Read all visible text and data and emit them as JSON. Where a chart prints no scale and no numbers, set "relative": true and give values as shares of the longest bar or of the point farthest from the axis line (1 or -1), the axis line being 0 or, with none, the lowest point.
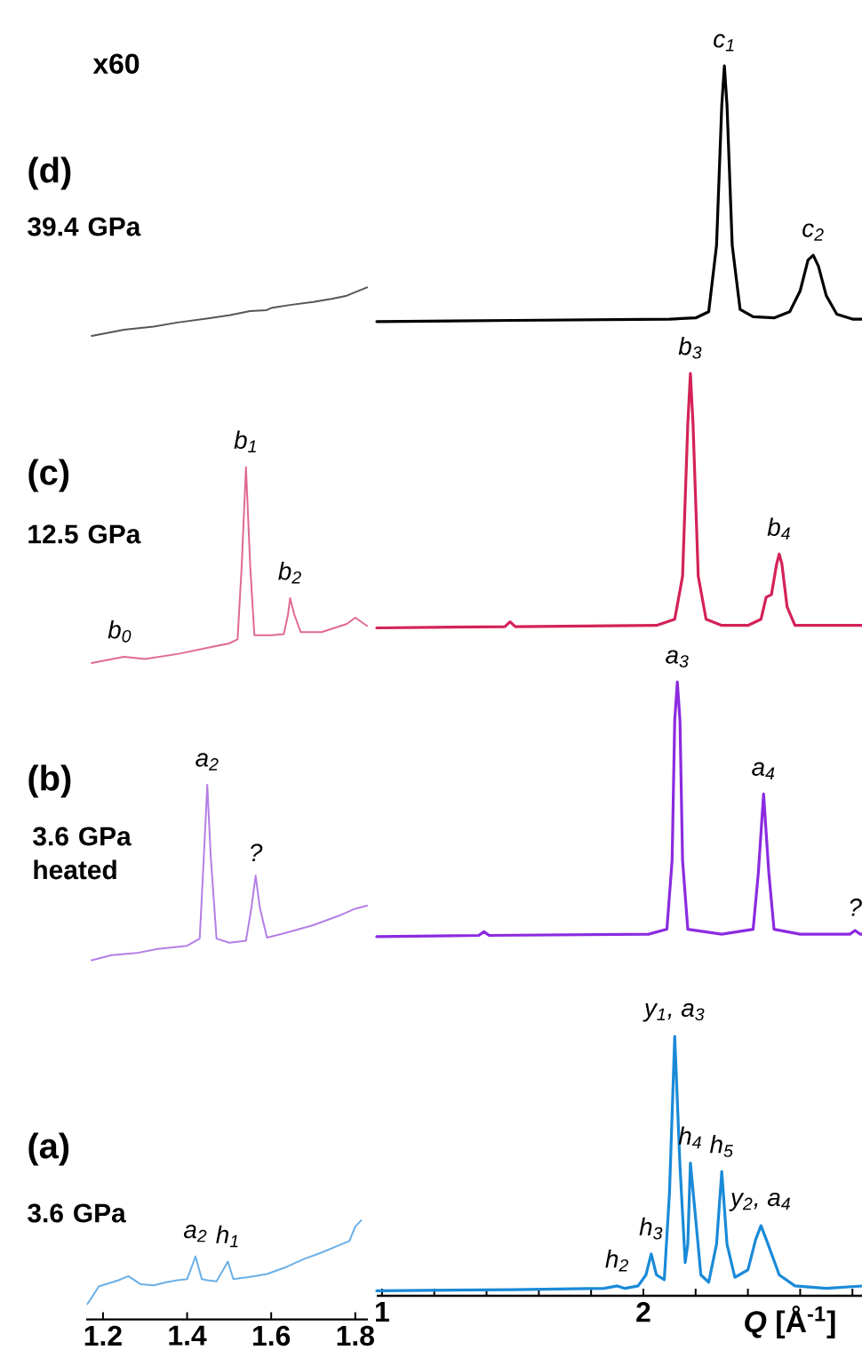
{
  "chart_data": [
    {
      "type": "line",
      "relative": true,
      "xlim": [
        1.16,
        1.83
      ],
      "xticks": [
        1.2,
        1.4,
        1.6,
        1.8
      ],
      "tick_labels": "x",
      "annotations": [
        "x60",
        "(d)",
        "39.4 GPa",
        "(c)",
        "12.5 GPa",
        "(b)",
        "3.6 GPa heated",
        "(a)",
        "3.6 GPa",
        {
          "text": "b$_{0}$",
          "x": 1.24,
          "y": 0.642
        },
        {
          "text": "b$_{1}$",
          "x": 1.54,
          "y": 0.826
        },
        {
          "text": "b$_{2}$",
          "x": 1.645,
          "y": 0.699
        },
        {
          "text": "a$_{2}$",
          "x": 1.448,
          "y": 0.518
        },
        {
          "text": "?",
          "x": 1.563,
          "y": 0.43
        },
        {
          "text": "a$_{2}$",
          "x": 1.42,
          "y": 0.061
        },
        {
          "text": "h$_{1}$",
          "x": 1.497,
          "y": 0.056
        }
      ],
      "series": [
        {
          "color": "#555555",
          "x": [
            1.173,
            1.25,
            1.32,
            1.377,
            1.45,
            1.5,
            1.55,
            1.589,
            1.6,
            1.645,
            1.7,
            1.744,
            1.78,
            1.828
          ],
          "values": [
            0.953,
            0.959,
            0.962,
            0.966,
            0.97,
            0.973,
            0.977,
            0.978,
            0.98,
            0.983,
            0.986,
            0.989,
            0.992,
            1
          ]
        },
        {
          "color": "#e06a90",
          "x": [
            1.173,
            1.25,
            1.3,
            1.38,
            1.45,
            1.5,
            1.52,
            1.53,
            1.54,
            1.55,
            1.56,
            1.6,
            1.63,
            1.64,
            1.645,
            1.655,
            1.67,
            1.72,
            1.78,
            1.8,
            1.828
          ],
          "values": [
            0.636,
            0.642,
            0.64,
            0.645,
            0.651,
            0.655,
            0.659,
            0.731,
            0.826,
            0.731,
            0.663,
            0.663,
            0.664,
            0.683,
            0.699,
            0.683,
            0.666,
            0.666,
            0.674,
            0.68,
            0.672
          ]
        },
        {
          "color": "#b57ee6",
          "x": [
            1.173,
            1.22,
            1.28,
            1.33,
            1.4,
            1.43,
            1.44,
            1.448,
            1.456,
            1.47,
            1.5,
            1.54,
            1.553,
            1.563,
            1.573,
            1.59,
            1.63,
            1.7,
            1.76,
            1.8,
            1.828
          ],
          "values": [
            0.348,
            0.353,
            0.355,
            0.359,
            0.362,
            0.369,
            0.45,
            0.518,
            0.45,
            0.369,
            0.365,
            0.367,
            0.399,
            0.43,
            0.399,
            0.37,
            0.374,
            0.382,
            0.391,
            0.398,
            0.401
          ]
        },
        {
          "color": "#6aafe6",
          "x": [
            1.163,
            1.19,
            1.237,
            1.26,
            1.29,
            1.321,
            1.35,
            1.377,
            1.4,
            1.42,
            1.435,
            1.448,
            1.47,
            1.497,
            1.51,
            1.546,
            1.59,
            1.631,
            1.68,
            1.715,
            1.75,
            1.786,
            1.8,
            1.814
          ],
          "values": [
            0.015,
            0.032,
            0.038,
            0.042,
            0.034,
            0.033,
            0.036,
            0.038,
            0.039,
            0.061,
            0.039,
            0.038,
            0.037,
            0.056,
            0.039,
            0.041,
            0.044,
            0.05,
            0.059,
            0.064,
            0.07,
            0.076,
            0.09,
            0.096
          ]
        }
      ]
    },
    {
      "type": "line",
      "relative": true,
      "xlim": [
        0.98,
        2.84
      ],
      "tick_labels": "x",
      "xlabel": "*Q*  [Å$^{-1}$]",
      "xticks": [
        1,
        {
          "value": 1.2,
          "label": null
        },
        {
          "value": 1.4,
          "label": null
        },
        {
          "value": 1.6,
          "label": null
        },
        {
          "value": 1.8,
          "label": null
        },
        2,
        {
          "value": 2.2,
          "label": null
        },
        {
          "value": 2.4,
          "label": null
        },
        {
          "value": 2.6,
          "label": null
        },
        {
          "value": 2.8,
          "label": null
        }
      ],
      "annotations": [
        {
          "text": "c$_{1}$",
          "x": 2.31,
          "y": 1
        },
        {
          "text": "c$_{2}$",
          "x": 2.65,
          "y": 0.846
        },
        {
          "text": "b$_{3}$",
          "x": 2.18,
          "y": 0.75
        },
        {
          "text": "b$_{4}$",
          "x": 2.52,
          "y": 0.603
        },
        {
          "text": "a$_{3}$",
          "x": 2.13,
          "y": 0.499
        },
        {
          "text": "a$_{4}$",
          "x": 2.46,
          "y": 0.408
        },
        {
          "text": "?",
          "x": 2.81,
          "y": 0.297
        },
        {
          "text": "h$_{2}$",
          "x": 1.9,
          "y": 0.008
        },
        {
          "text": "h$_{3}$",
          "x": 2.03,
          "y": 0.034
        },
        {
          "text": "y$_{1}$, a$_{3}$",
          "x": 2.12,
          "y": 0.211
        },
        {
          "text": "h$_{4}$",
          "x": 2.18,
          "y": 0.108
        },
        {
          "text": "h$_{5}$",
          "x": 2.3,
          "y": 0.101
        },
        {
          "text": "y$_{2}$, a$_{4}$",
          "x": 2.45,
          "y": 0.057
        }
      ],
      "series": [
        {
          "color": "#000000",
          "x": [
            0.98,
            1.5,
            2.1,
            2.2,
            2.25,
            2.28,
            2.3,
            2.31,
            2.32,
            2.34,
            2.37,
            2.42,
            2.5,
            2.56,
            2.6,
            2.63,
            2.65,
            2.67,
            2.7,
            2.74,
            2.8,
            2.84
          ],
          "values": [
            0.792,
            0.793,
            0.794,
            0.795,
            0.8,
            0.854,
            0.968,
            1,
            0.968,
            0.854,
            0.802,
            0.796,
            0.795,
            0.8,
            0.817,
            0.842,
            0.846,
            0.837,
            0.813,
            0.798,
            0.794,
            0.794
          ]
        },
        {
          "color": "#d42258",
          "x": [
            0.98,
            1.47,
            1.49,
            1.51,
            2.05,
            2.12,
            2.15,
            2.17,
            2.18,
            2.19,
            2.21,
            2.24,
            2.3,
            2.4,
            2.45,
            2.47,
            2.49,
            2.51,
            2.52,
            2.53,
            2.55,
            2.58,
            2.7,
            2.84
          ],
          "values": [
            0.543,
            0.544,
            0.548,
            0.544,
            0.545,
            0.55,
            0.585,
            0.709,
            0.75,
            0.709,
            0.585,
            0.55,
            0.545,
            0.545,
            0.55,
            0.568,
            0.57,
            0.595,
            0.603,
            0.595,
            0.56,
            0.545,
            0.545,
            0.545
          ]
        },
        {
          "color": "#8b2be0",
          "x": [
            0.98,
            1.37,
            1.39,
            1.41,
            2.02,
            2.09,
            2.11,
            2.12,
            2.13,
            2.14,
            2.15,
            2.17,
            2.3,
            2.42,
            2.44,
            2.46,
            2.48,
            2.5,
            2.6,
            2.79,
            2.81,
            2.83,
            2.84
          ],
          "values": [
            0.292,
            0.293,
            0.296,
            0.293,
            0.294,
            0.298,
            0.354,
            0.468,
            0.499,
            0.468,
            0.354,
            0.298,
            0.294,
            0.298,
            0.344,
            0.408,
            0.344,
            0.298,
            0.294,
            0.294,
            0.297,
            0.294,
            0.294
          ]
        },
        {
          "color": "#1a8ad8",
          "x": [
            0.98,
            1.5,
            1.85,
            1.9,
            1.93,
            1.98,
            2.01,
            2.03,
            2.05,
            2.08,
            2.1,
            2.12,
            2.14,
            2.16,
            2.17,
            2.18,
            2.2,
            2.22,
            2.25,
            2.28,
            2.3,
            2.32,
            2.35,
            2.4,
            2.43,
            2.45,
            2.47,
            2.52,
            2.58,
            2.7,
            2.84
          ],
          "values": [
            0.004,
            0.005,
            0.006,
            0.008,
            0.006,
            0.008,
            0.017,
            0.034,
            0.017,
            0.013,
            0.084,
            0.211,
            0.106,
            0.027,
            0.042,
            0.108,
            0.063,
            0.017,
            0.011,
            0.042,
            0.101,
            0.042,
            0.015,
            0.021,
            0.046,
            0.057,
            0.046,
            0.017,
            0.008,
            0.006,
            0.008
          ]
        }
      ]
    }
  ]
}
